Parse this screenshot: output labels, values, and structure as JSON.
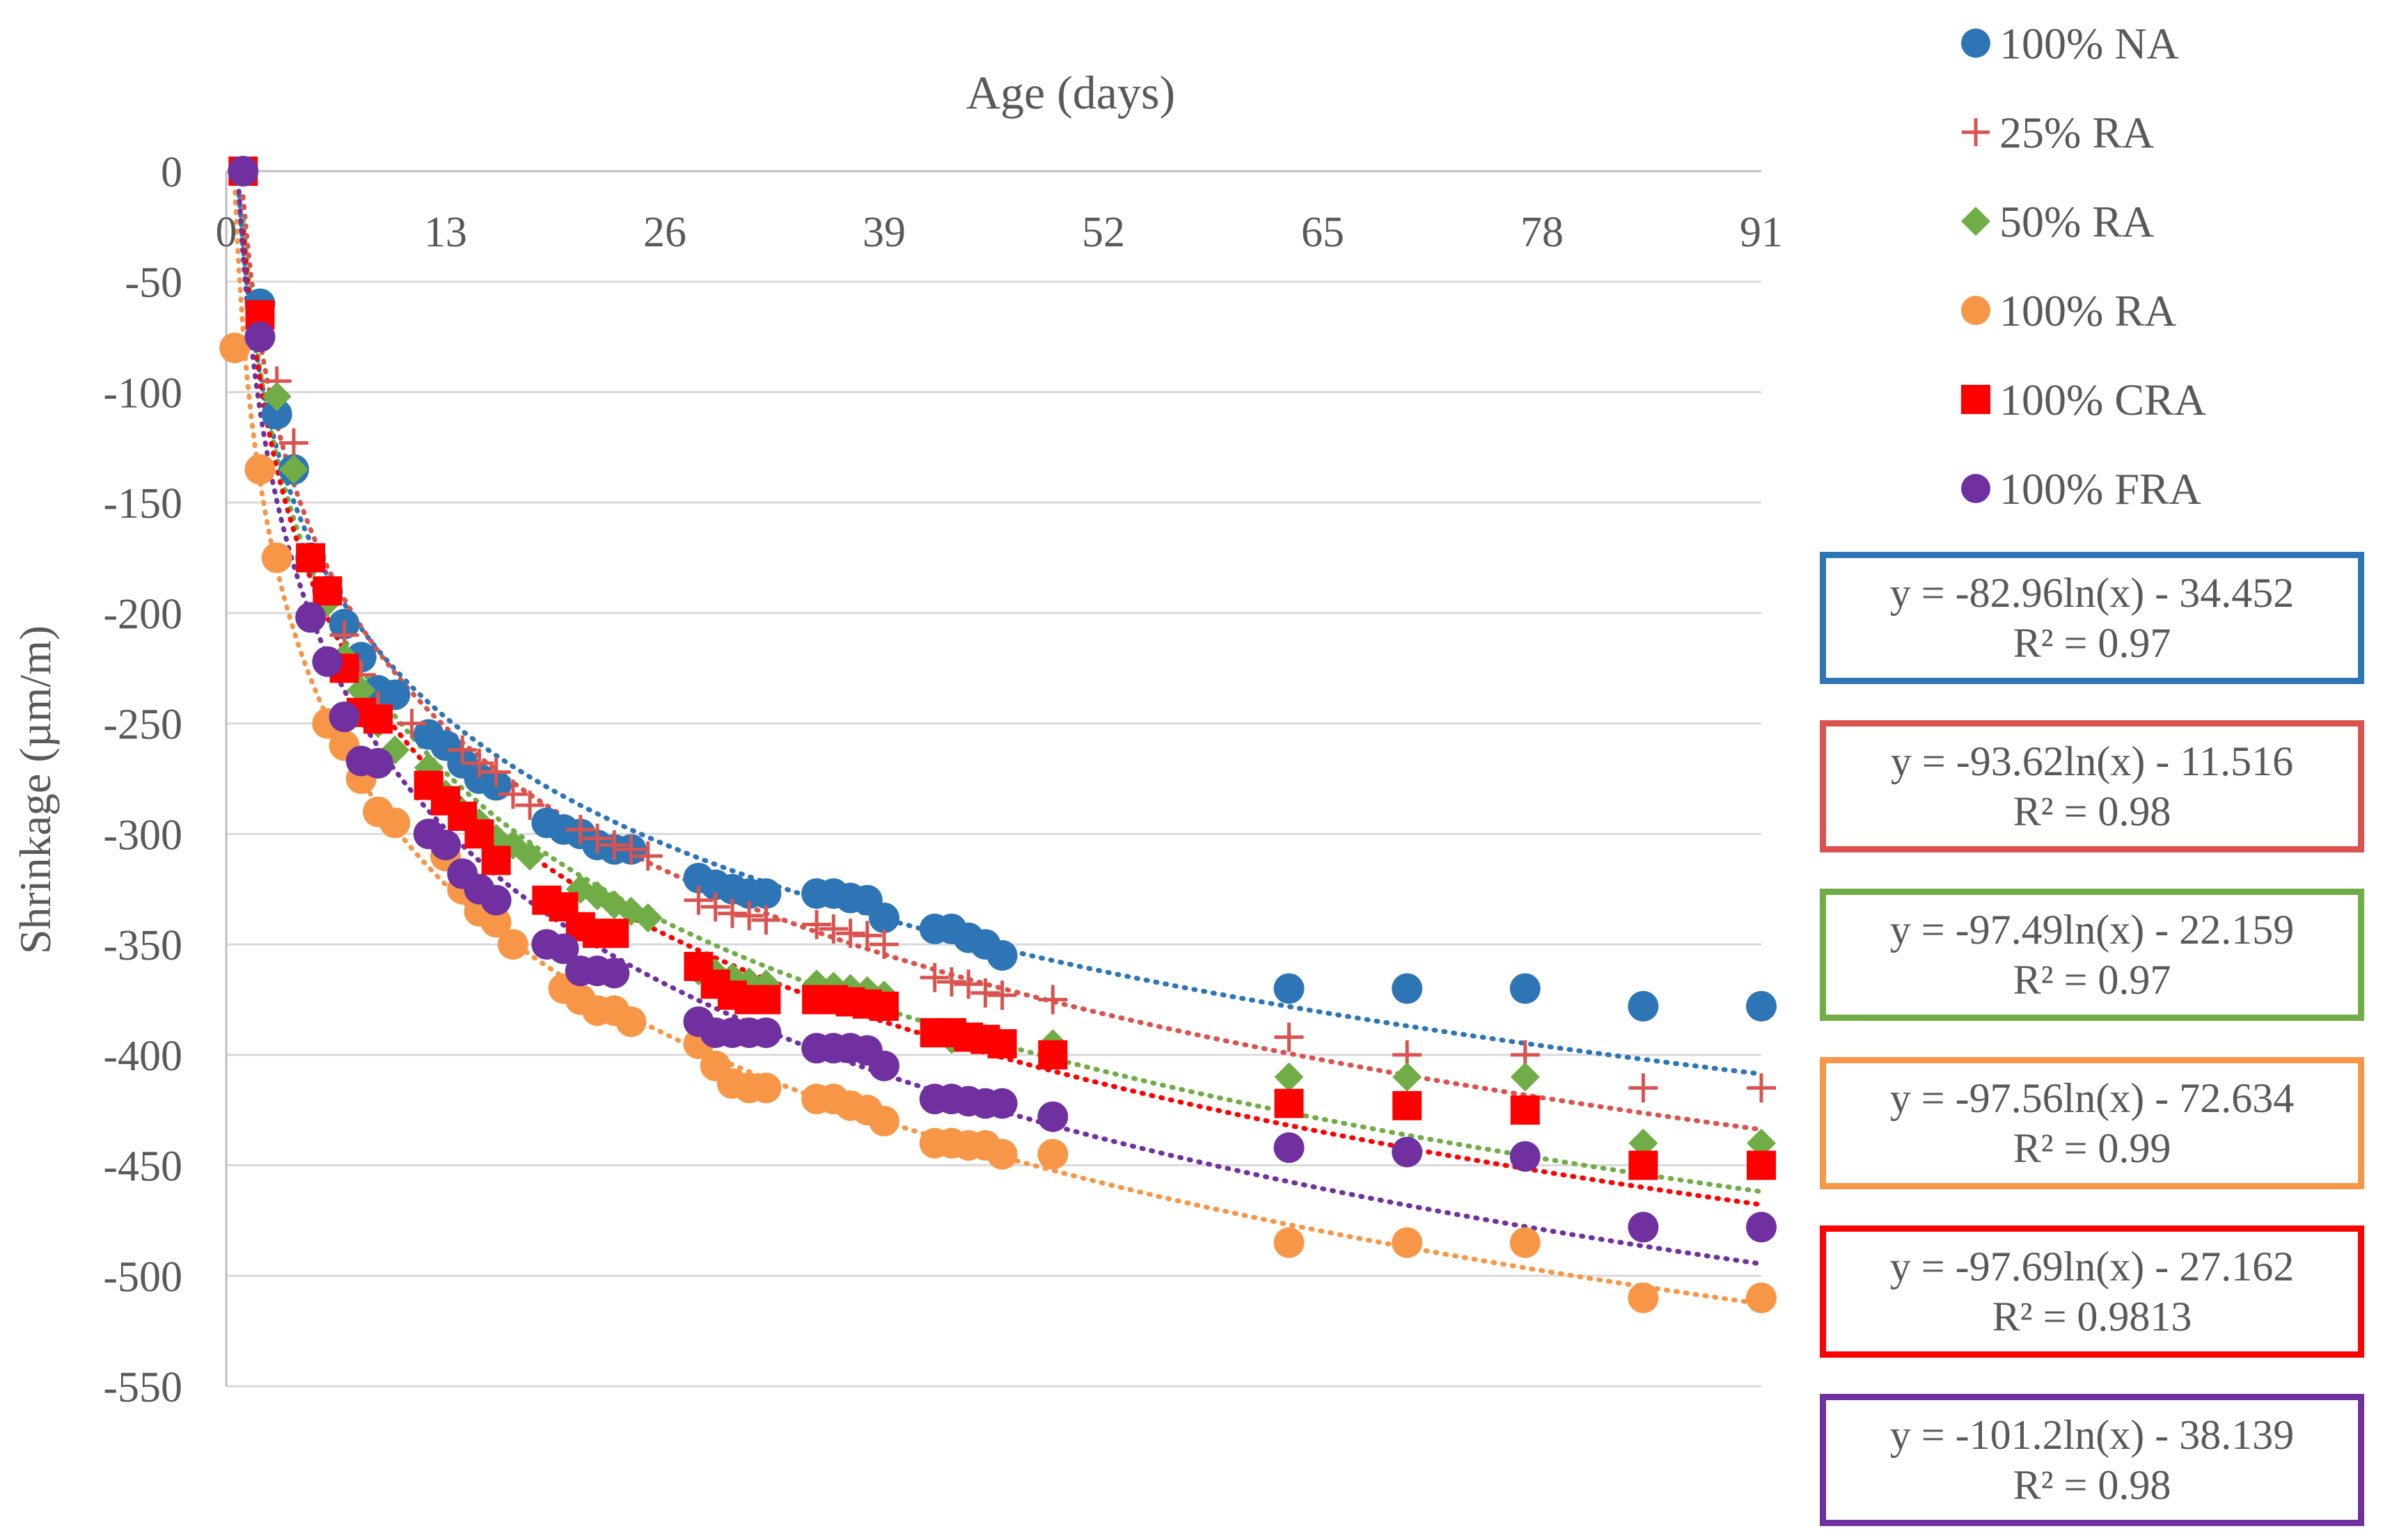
{
  "chart_data": {
    "type": "scatter",
    "title": "",
    "xlabel": "Age (days)",
    "ylabel": "Shrinkage (µm/m)",
    "xlim": [
      0,
      91
    ],
    "ylim": [
      -550,
      0
    ],
    "xticks": [
      0,
      13,
      26,
      39,
      52,
      65,
      78,
      91
    ],
    "yticks": [
      0,
      -50,
      -100,
      -150,
      -200,
      -250,
      -300,
      -350,
      -400,
      -450,
      -500,
      -550
    ],
    "xtick_labels": [
      "0",
      "13",
      "26",
      "39",
      "52",
      "65",
      "78",
      "91"
    ],
    "ytick_labels": [
      "0",
      "-50",
      "-100",
      "-150",
      "-200",
      "-250",
      "-300",
      "-350",
      "-400",
      "-450",
      "-500",
      "-550"
    ],
    "grid": "horizontal",
    "legend_position": "right",
    "series": [
      {
        "name": "100% NA",
        "color": "#2E75B6",
        "marker": "circle",
        "trend": {
          "a": -82.96,
          "b": -34.452
        },
        "equation": "y = -82.96ln(x) - 34.452",
        "r2": "R² = 0.97",
        "points": [
          [
            1,
            0
          ],
          [
            2,
            -60
          ],
          [
            3,
            -110
          ],
          [
            4,
            -135
          ],
          [
            5,
            -175
          ],
          [
            6,
            -190
          ],
          [
            7,
            -205
          ],
          [
            8,
            -220
          ],
          [
            9,
            -235
          ],
          [
            10,
            -237
          ],
          [
            12,
            -255
          ],
          [
            13,
            -260
          ],
          [
            14,
            -268
          ],
          [
            15,
            -275
          ],
          [
            16,
            -278
          ],
          [
            19,
            -295
          ],
          [
            20,
            -298
          ],
          [
            21,
            -300
          ],
          [
            22,
            -305
          ],
          [
            23,
            -307
          ],
          [
            24,
            -307
          ],
          [
            28,
            -320
          ],
          [
            29,
            -323
          ],
          [
            30,
            -325
          ],
          [
            31,
            -327
          ],
          [
            32,
            -327
          ],
          [
            35,
            -327
          ],
          [
            36,
            -327
          ],
          [
            37,
            -329
          ],
          [
            38,
            -330
          ],
          [
            39,
            -338
          ],
          [
            42,
            -343
          ],
          [
            43,
            -343
          ],
          [
            44,
            -347
          ],
          [
            45,
            -350
          ],
          [
            46,
            -355
          ],
          [
            63,
            -370
          ],
          [
            70,
            -370
          ],
          [
            77,
            -370
          ],
          [
            84,
            -378
          ],
          [
            91,
            -378
          ]
        ]
      },
      {
        "name": "25% RA",
        "color": "#D9534F",
        "marker": "plus",
        "trend": {
          "a": -93.62,
          "b": -11.516
        },
        "equation": "y = -93.62ln(x) - 11.516",
        "r2": "R² = 0.98",
        "points": [
          [
            1,
            0
          ],
          [
            2,
            -65
          ],
          [
            3,
            -95
          ],
          [
            4,
            -123
          ],
          [
            5,
            -175
          ],
          [
            6,
            -195
          ],
          [
            7,
            -210
          ],
          [
            8,
            -228
          ],
          [
            9,
            -242
          ],
          [
            11,
            -250
          ],
          [
            14,
            -262
          ],
          [
            15,
            -268
          ],
          [
            16,
            -272
          ],
          [
            17,
            -282
          ],
          [
            18,
            -287
          ],
          [
            21,
            -298
          ],
          [
            22,
            -302
          ],
          [
            23,
            -305
          ],
          [
            24,
            -307
          ],
          [
            25,
            -310
          ],
          [
            28,
            -330
          ],
          [
            29,
            -333
          ],
          [
            30,
            -336
          ],
          [
            31,
            -337
          ],
          [
            32,
            -339
          ],
          [
            35,
            -341
          ],
          [
            36,
            -343
          ],
          [
            37,
            -345
          ],
          [
            38,
            -346
          ],
          [
            39,
            -350
          ],
          [
            42,
            -365
          ],
          [
            43,
            -367
          ],
          [
            44,
            -368
          ],
          [
            45,
            -372
          ],
          [
            46,
            -373
          ],
          [
            49,
            -375
          ],
          [
            63,
            -392
          ],
          [
            70,
            -400
          ],
          [
            77,
            -400
          ],
          [
            84,
            -415
          ],
          [
            91,
            -415
          ]
        ]
      },
      {
        "name": "50% RA",
        "color": "#70AD47",
        "marker": "diamond",
        "trend": {
          "a": -97.49,
          "b": -22.159
        },
        "equation": "y = -97.49ln(x) - 22.159",
        "r2": "R² = 0.97",
        "points": [
          [
            1,
            0
          ],
          [
            2,
            -70
          ],
          [
            3,
            -102
          ],
          [
            4,
            -135
          ],
          [
            5,
            -175
          ],
          [
            6,
            -195
          ],
          [
            7,
            -220
          ],
          [
            8,
            -235
          ],
          [
            9,
            -250
          ],
          [
            10,
            -262
          ],
          [
            12,
            -270
          ],
          [
            13,
            -282
          ],
          [
            14,
            -290
          ],
          [
            15,
            -295
          ],
          [
            16,
            -302
          ],
          [
            17,
            -305
          ],
          [
            18,
            -310
          ],
          [
            21,
            -325
          ],
          [
            22,
            -328
          ],
          [
            23,
            -332
          ],
          [
            24,
            -335
          ],
          [
            25,
            -338
          ],
          [
            28,
            -362
          ],
          [
            29,
            -363
          ],
          [
            30,
            -365
          ],
          [
            31,
            -367
          ],
          [
            32,
            -368
          ],
          [
            35,
            -368
          ],
          [
            36,
            -369
          ],
          [
            37,
            -370
          ],
          [
            38,
            -371
          ],
          [
            39,
            -373
          ],
          [
            42,
            -390
          ],
          [
            43,
            -393
          ],
          [
            44,
            -392
          ],
          [
            45,
            -393
          ],
          [
            46,
            -395
          ],
          [
            49,
            -395
          ],
          [
            63,
            -410
          ],
          [
            70,
            -410
          ],
          [
            77,
            -410
          ],
          [
            84,
            -440
          ],
          [
            91,
            -440
          ]
        ]
      },
      {
        "name": "100% RA",
        "color": "#F79646",
        "marker": "circle",
        "trend": {
          "a": -97.56,
          "b": -72.634
        },
        "equation": "y = -97.56ln(x) - 72.634",
        "r2": "R² = 0.99",
        "points": [
          [
            0.5,
            -80
          ],
          [
            2,
            -135
          ],
          [
            3,
            -175
          ],
          [
            6,
            -250
          ],
          [
            7,
            -260
          ],
          [
            8,
            -275
          ],
          [
            9,
            -290
          ],
          [
            10,
            -295
          ],
          [
            13,
            -310
          ],
          [
            14,
            -325
          ],
          [
            15,
            -335
          ],
          [
            16,
            -340
          ],
          [
            17,
            -350
          ],
          [
            20,
            -370
          ],
          [
            21,
            -375
          ],
          [
            22,
            -380
          ],
          [
            23,
            -380
          ],
          [
            24,
            -385
          ],
          [
            28,
            -395
          ],
          [
            29,
            -405
          ],
          [
            30,
            -413
          ],
          [
            31,
            -415
          ],
          [
            32,
            -415
          ],
          [
            35,
            -420
          ],
          [
            36,
            -420
          ],
          [
            37,
            -423
          ],
          [
            38,
            -425
          ],
          [
            39,
            -430
          ],
          [
            42,
            -440
          ],
          [
            43,
            -440
          ],
          [
            44,
            -441
          ],
          [
            45,
            -441
          ],
          [
            46,
            -445
          ],
          [
            49,
            -445
          ],
          [
            63,
            -485
          ],
          [
            70,
            -485
          ],
          [
            77,
            -485
          ],
          [
            84,
            -510
          ],
          [
            91,
            -510
          ]
        ]
      },
      {
        "name": "100% CRA",
        "color": "#FF0000",
        "marker": "square",
        "trend": {
          "a": -97.69,
          "b": -27.162
        },
        "equation": "y = -97.69ln(x) - 27.162",
        "r2": "R² = 0.9813",
        "points": [
          [
            1,
            0
          ],
          [
            2,
            -65
          ],
          [
            5,
            -175
          ],
          [
            6,
            -190
          ],
          [
            7,
            -225
          ],
          [
            8,
            -245
          ],
          [
            9,
            -248
          ],
          [
            12,
            -278
          ],
          [
            13,
            -285
          ],
          [
            14,
            -292
          ],
          [
            15,
            -300
          ],
          [
            16,
            -312
          ],
          [
            19,
            -330
          ],
          [
            20,
            -333
          ],
          [
            21,
            -342
          ],
          [
            22,
            -345
          ],
          [
            23,
            -345
          ],
          [
            28,
            -360
          ],
          [
            29,
            -368
          ],
          [
            30,
            -373
          ],
          [
            31,
            -375
          ],
          [
            32,
            -375
          ],
          [
            35,
            -375
          ],
          [
            36,
            -375
          ],
          [
            37,
            -376
          ],
          [
            38,
            -377
          ],
          [
            39,
            -378
          ],
          [
            42,
            -390
          ],
          [
            43,
            -390
          ],
          [
            44,
            -392
          ],
          [
            45,
            -393
          ],
          [
            46,
            -395
          ],
          [
            49,
            -400
          ],
          [
            63,
            -422
          ],
          [
            70,
            -423
          ],
          [
            77,
            -425
          ],
          [
            84,
            -450
          ],
          [
            91,
            -450
          ]
        ]
      },
      {
        "name": "100% FRA",
        "color": "#7030A0",
        "marker": "circle",
        "trend": {
          "a": -101.2,
          "b": -38.139
        },
        "equation": "y = -101.2ln(x) - 38.139",
        "r2": "R² = 0.98",
        "points": [
          [
            1,
            0
          ],
          [
            2,
            -75
          ],
          [
            5,
            -202
          ],
          [
            6,
            -222
          ],
          [
            7,
            -247
          ],
          [
            8,
            -267
          ],
          [
            9,
            -268
          ],
          [
            12,
            -300
          ],
          [
            13,
            -305
          ],
          [
            14,
            -318
          ],
          [
            15,
            -325
          ],
          [
            16,
            -330
          ],
          [
            19,
            -350
          ],
          [
            20,
            -352
          ],
          [
            21,
            -362
          ],
          [
            22,
            -362
          ],
          [
            23,
            -363
          ],
          [
            28,
            -385
          ],
          [
            29,
            -390
          ],
          [
            30,
            -390
          ],
          [
            31,
            -390
          ],
          [
            32,
            -390
          ],
          [
            35,
            -397
          ],
          [
            36,
            -397
          ],
          [
            37,
            -397
          ],
          [
            38,
            -398
          ],
          [
            39,
            -405
          ],
          [
            42,
            -420
          ],
          [
            43,
            -420
          ],
          [
            44,
            -421
          ],
          [
            45,
            -422
          ],
          [
            46,
            -422
          ],
          [
            49,
            -428
          ],
          [
            63,
            -442
          ],
          [
            70,
            -444
          ],
          [
            77,
            -446
          ],
          [
            84,
            -478
          ],
          [
            91,
            -478
          ]
        ]
      }
    ]
  }
}
